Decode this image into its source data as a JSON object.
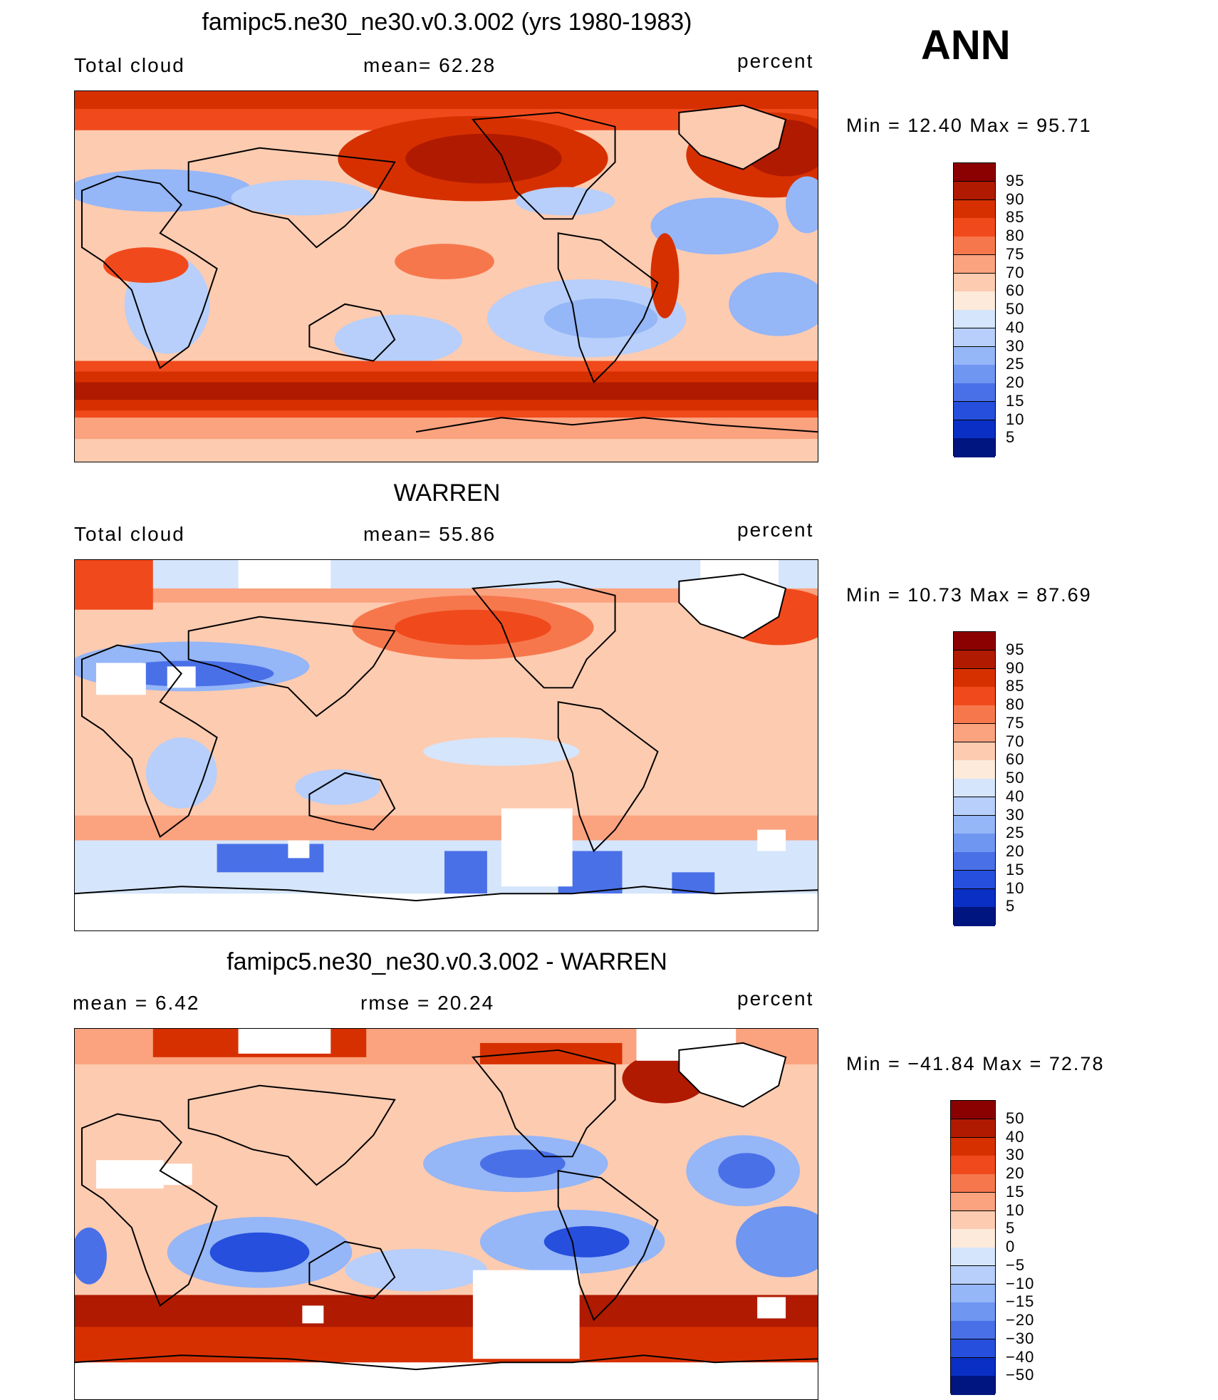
{
  "ann_label": "ANN",
  "panels": [
    {
      "title": "famipc5.ne30_ne30.v0.3.002 (yrs 1980-1983)",
      "left_label": "Total cloud",
      "center_label": "mean=   62.28",
      "right_label": "percent",
      "minmax": "Min  =   12.40  Max  =   95.71",
      "map_name": "model-total-cloud-map"
    },
    {
      "title": "WARREN",
      "left_label": "Total cloud",
      "center_label": "mean=   55.86",
      "right_label": "percent",
      "minmax": "Min  =   10.73  Max  =   87.69",
      "map_name": "obs-total-cloud-map"
    },
    {
      "title": "famipc5.ne30_ne30.v0.3.002 - WARREN",
      "left_label": "mean  =     6.42",
      "center_label": "rmse  =    20.24",
      "right_label": "percent",
      "minmax": "Min  = −41.84  Max  =    72.78",
      "map_name": "difference-map"
    }
  ],
  "colorbars": {
    "abs_levels": [
      "95",
      "90",
      "85",
      "80",
      "75",
      "70",
      "60",
      "50",
      "40",
      "30",
      "25",
      "20",
      "15",
      "10",
      "5"
    ],
    "abs_colors": [
      "#8b0000",
      "#b01a00",
      "#d73000",
      "#f04a1c",
      "#f7774d",
      "#fba27f",
      "#fdcbb0",
      "#fdeadb",
      "#d5e5fb",
      "#b7cffa",
      "#95b6f7",
      "#6f96f1",
      "#4a70e8",
      "#254fdc",
      "#0a2fc4",
      "#00157f"
    ],
    "diff_levels": [
      "50",
      "40",
      "30",
      "20",
      "15",
      "10",
      "5",
      "0",
      "−5",
      "−10",
      "−15",
      "−20",
      "−30",
      "−40",
      "−50"
    ],
    "diff_colors": [
      "#8b0000",
      "#b01a00",
      "#d73000",
      "#f04a1c",
      "#f7774d",
      "#fba27f",
      "#fdcbb0",
      "#fdeadb",
      "#d5e5fb",
      "#b7cffa",
      "#95b6f7",
      "#6f96f1",
      "#4a70e8",
      "#254fdc",
      "#0a2fc4",
      "#00157f"
    ]
  }
}
